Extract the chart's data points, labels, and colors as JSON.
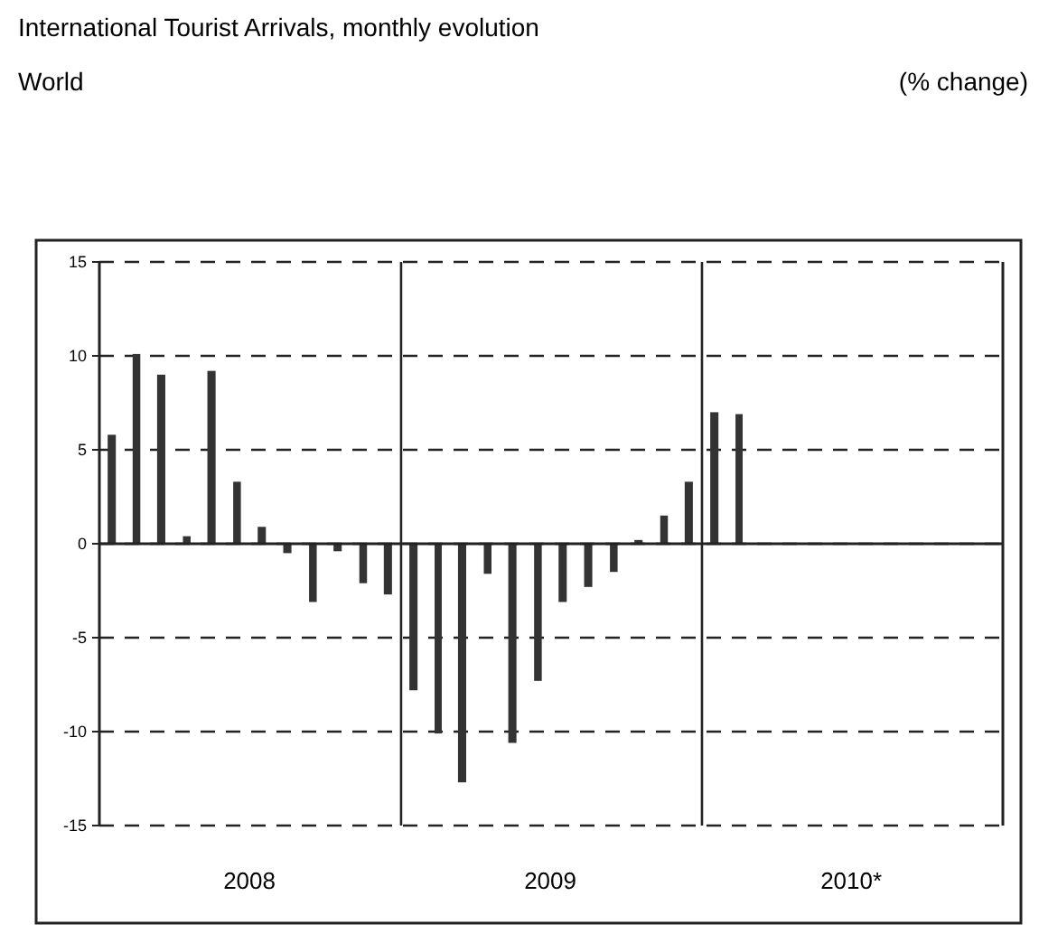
{
  "chart_data": {
    "type": "bar",
    "title": "International Tourist Arrivals, monthly evolution",
    "subtitle": "World",
    "annotations": [
      "(% change)"
    ],
    "x": [
      "2008-01-16",
      "2008-02-15",
      "2008-03-16",
      "2008-04-16",
      "2008-05-16",
      "2008-06-16",
      "2008-07-16",
      "2008-08-16",
      "2008-09-16",
      "2008-10-16",
      "2008-11-16",
      "2008-12-16",
      "2009-01-16",
      "2009-02-15",
      "2009-03-16",
      "2009-04-16",
      "2009-05-16",
      "2009-06-16",
      "2009-07-16",
      "2009-08-16",
      "2009-09-16",
      "2009-10-16",
      "2009-11-16",
      "2009-12-16",
      "2010-01-16",
      "2010-02-15"
    ],
    "values": [
      5.8,
      10.1,
      9.0,
      0.4,
      9.2,
      3.3,
      0.9,
      -0.5,
      -3.1,
      -0.4,
      -2.1,
      -2.7,
      -7.8,
      -10.1,
      -12.7,
      -1.6,
      -10.6,
      -7.3,
      -3.1,
      -2.3,
      -1.5,
      0.2,
      1.5,
      3.3,
      7.0,
      6.9
    ],
    "color": "#333333",
    "xlim": [
      "2008-01",
      "2011-01"
    ],
    "xticks": [
      {
        "value": "2008-07",
        "label": "2008"
      },
      {
        "value": "2009-07",
        "label": "2009"
      },
      {
        "value": "2010-07",
        "label": "2010*"
      }
    ],
    "ylim": [
      -15,
      15
    ],
    "yticks": [
      -15,
      -10,
      -5,
      0,
      5,
      10,
      15
    ],
    "grid": "y",
    "ref_lines": [
      {
        "axis": "x",
        "value": "2009-01",
        "label": null
      },
      {
        "axis": "x",
        "value": "2010-01",
        "label": null
      }
    ]
  }
}
